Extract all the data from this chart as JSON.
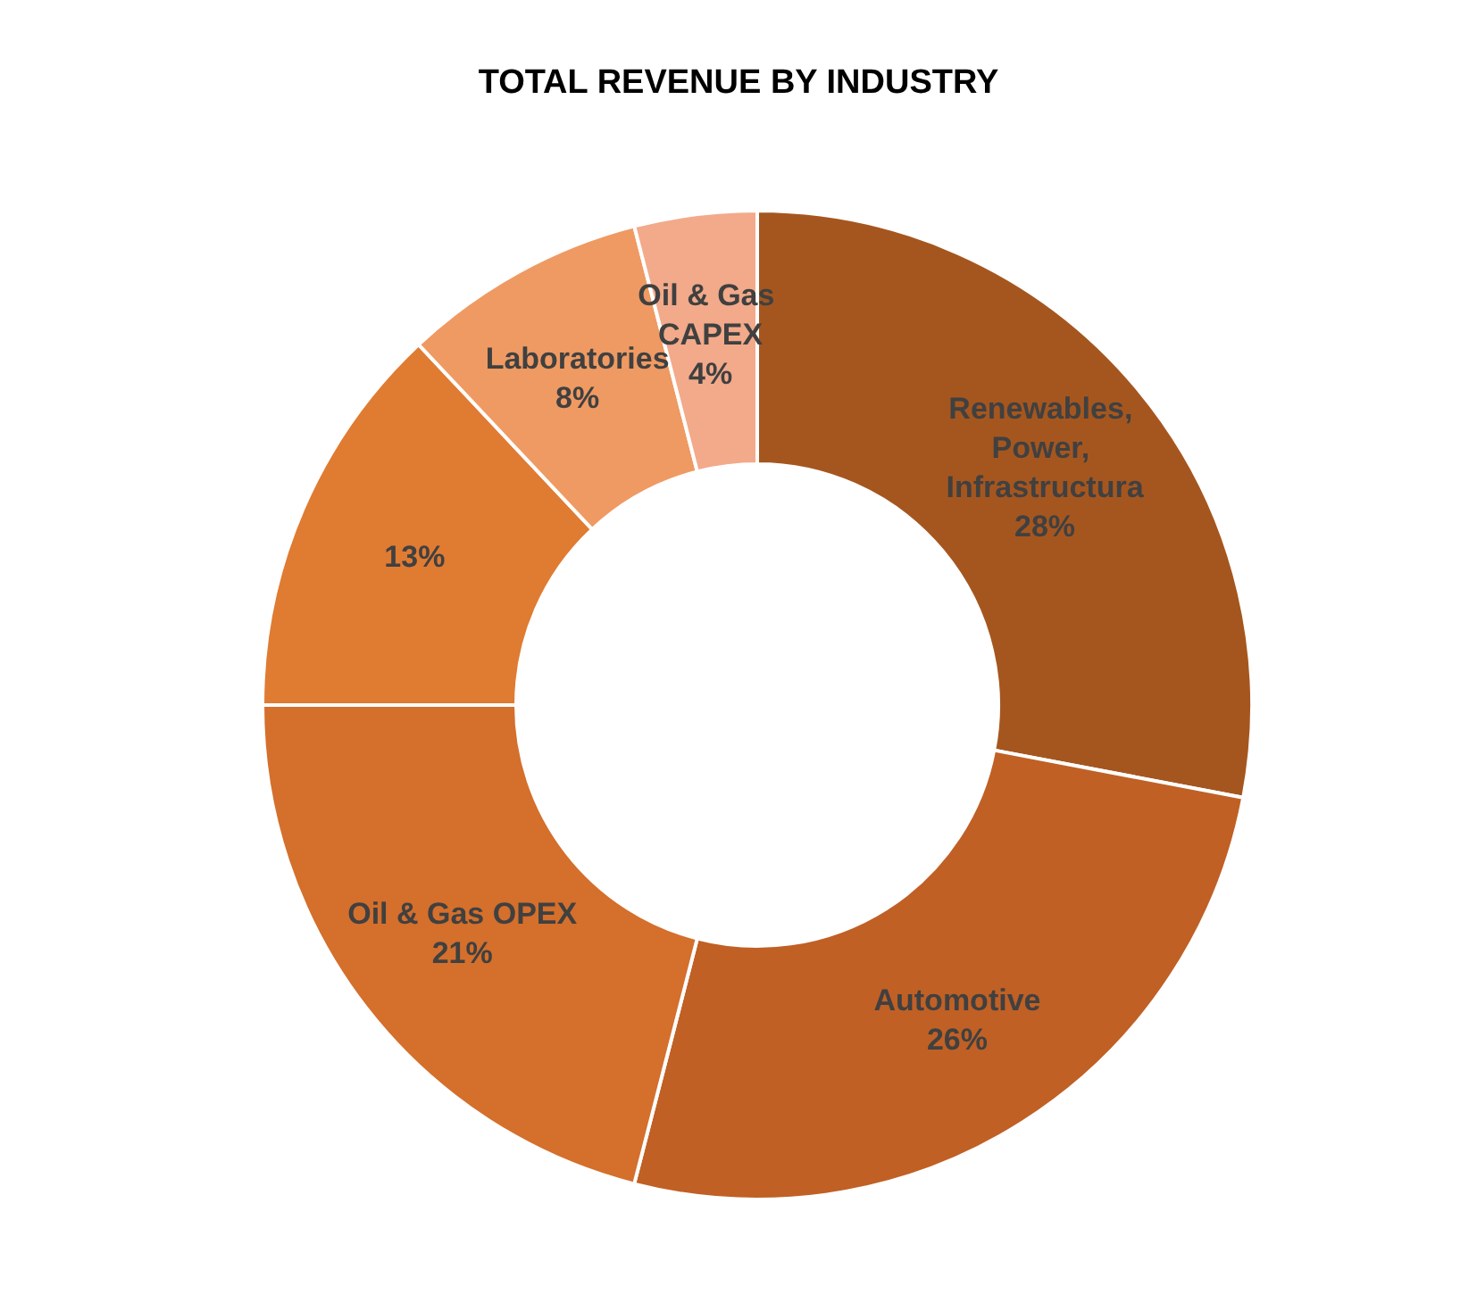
{
  "chart_data": {
    "type": "donut",
    "title": "TOTAL REVENUE BY INDUSTRY",
    "categories": [
      "Renewables, Power, Infrastructura",
      "Automotive",
      "Oil & Gas OPEX",
      null,
      "Laboratories",
      "Oil & Gas CAPEX"
    ],
    "values": [
      28,
      26,
      21,
      13,
      8,
      4
    ],
    "value_labels": [
      "28%",
      "26%",
      "21%",
      "13%",
      "8%",
      "4%"
    ],
    "colors": [
      "#a5561f",
      "#c06025",
      "#d46f2c",
      "#e07b32",
      "#ef9a62",
      "#f2aa8a"
    ],
    "legend": false
  }
}
